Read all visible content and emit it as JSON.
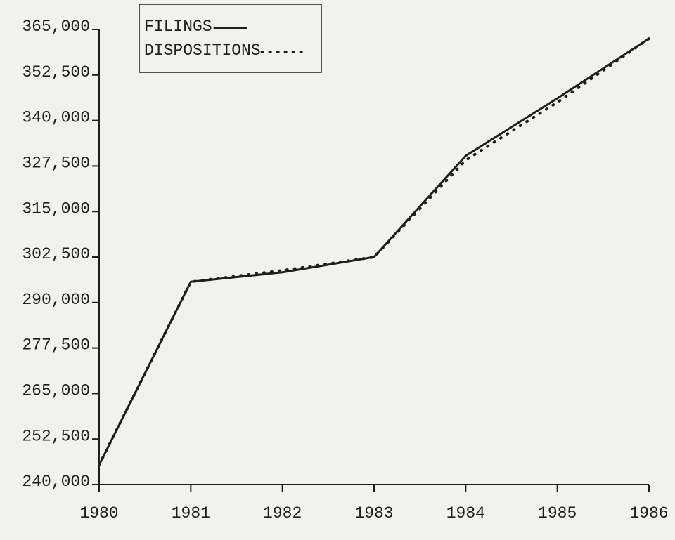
{
  "chart_data": {
    "type": "line",
    "x": [
      1980,
      1981,
      1982,
      1983,
      1984,
      1985,
      1986
    ],
    "series": [
      {
        "name": "FILINGS",
        "color": "#1e1e1e",
        "style": "solid",
        "values": [
          245400,
          295700,
          298300,
          302500,
          330300,
          346100,
          362500
        ]
      },
      {
        "name": "DISPOSITIONS",
        "color": "#1e1e1e",
        "style": "dotted",
        "values": [
          245400,
          295700,
          298800,
          302500,
          329100,
          345000,
          362500
        ]
      }
    ],
    "xlim": [
      1980,
      1986
    ],
    "xticks": [
      1980,
      1981,
      1982,
      1983,
      1984,
      1985,
      1986
    ],
    "ylim": [
      240000,
      365000
    ],
    "yticks": [
      {
        "value": 240000,
        "label": "240,000"
      },
      {
        "value": 252500,
        "label": "252,500"
      },
      {
        "value": 265000,
        "label": "265,000"
      },
      {
        "value": 277500,
        "label": "277,500"
      },
      {
        "value": 290000,
        "label": "290,000"
      },
      {
        "value": 302500,
        "label": "302,500"
      },
      {
        "value": 315000,
        "label": "315,000"
      },
      {
        "value": 327500,
        "label": "327,500"
      },
      {
        "value": 340000,
        "label": "340,000"
      },
      {
        "value": 352500,
        "label": "352,500"
      },
      {
        "value": 365000,
        "label": "365,000"
      }
    ]
  }
}
